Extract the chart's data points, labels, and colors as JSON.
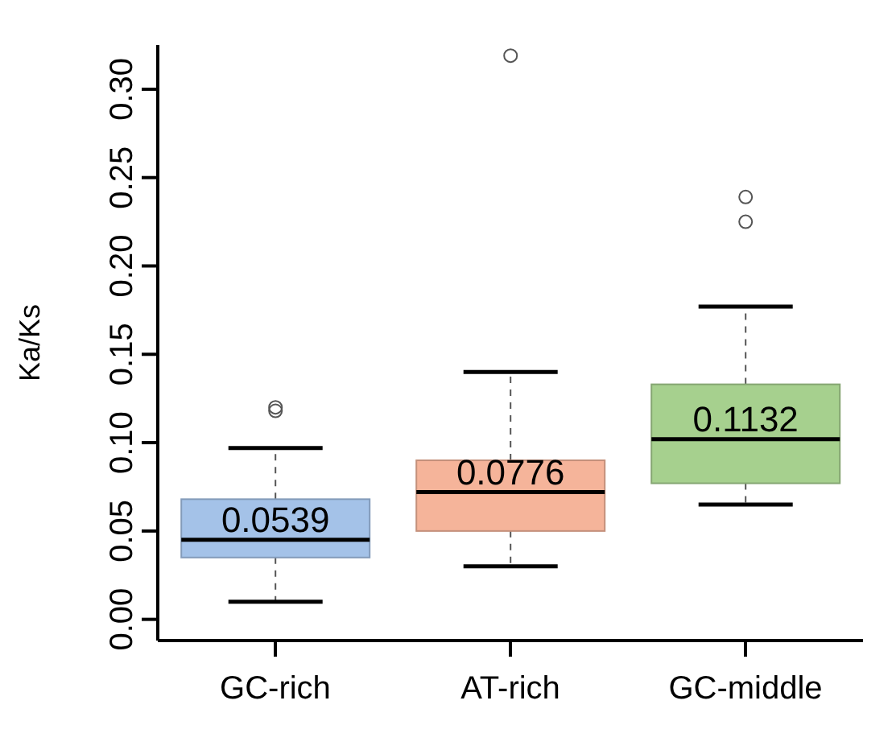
{
  "chart_data": {
    "type": "box",
    "ylabel": "Ka/Ks",
    "categories": [
      "GC-rich",
      "AT-rich",
      "GC-middle"
    ],
    "colors": [
      "#a4c2e8",
      "#f5b49a",
      "#a6d08e"
    ],
    "boxes": [
      {
        "low": 0.01,
        "q1": 0.035,
        "median": 0.045,
        "q3": 0.068,
        "high": 0.097,
        "outliers": [
          0.12,
          0.118
        ]
      },
      {
        "low": 0.03,
        "q1": 0.05,
        "median": 0.072,
        "q3": 0.09,
        "high": 0.14,
        "outliers": [
          0.319
        ]
      },
      {
        "low": 0.065,
        "q1": 0.077,
        "median": 0.102,
        "q3": 0.133,
        "high": 0.177,
        "outliers": [
          0.239,
          0.225
        ]
      }
    ],
    "annotations": [
      "0.0539",
      "0.0776",
      "0.1132"
    ],
    "ylim": [
      -0.012,
      0.325
    ],
    "yticks": [
      {
        "value": 0,
        "label": "0.00"
      },
      {
        "value": 0.05,
        "label": "0.05"
      },
      {
        "value": 0.1,
        "label": "0.10"
      },
      {
        "value": 0.15,
        "label": "0.15"
      },
      {
        "value": 0.2,
        "label": "0.20"
      },
      {
        "value": 0.25,
        "label": "0.25"
      },
      {
        "value": 0.3,
        "label": "0.30"
      }
    ],
    "grid": false,
    "legend": false
  }
}
